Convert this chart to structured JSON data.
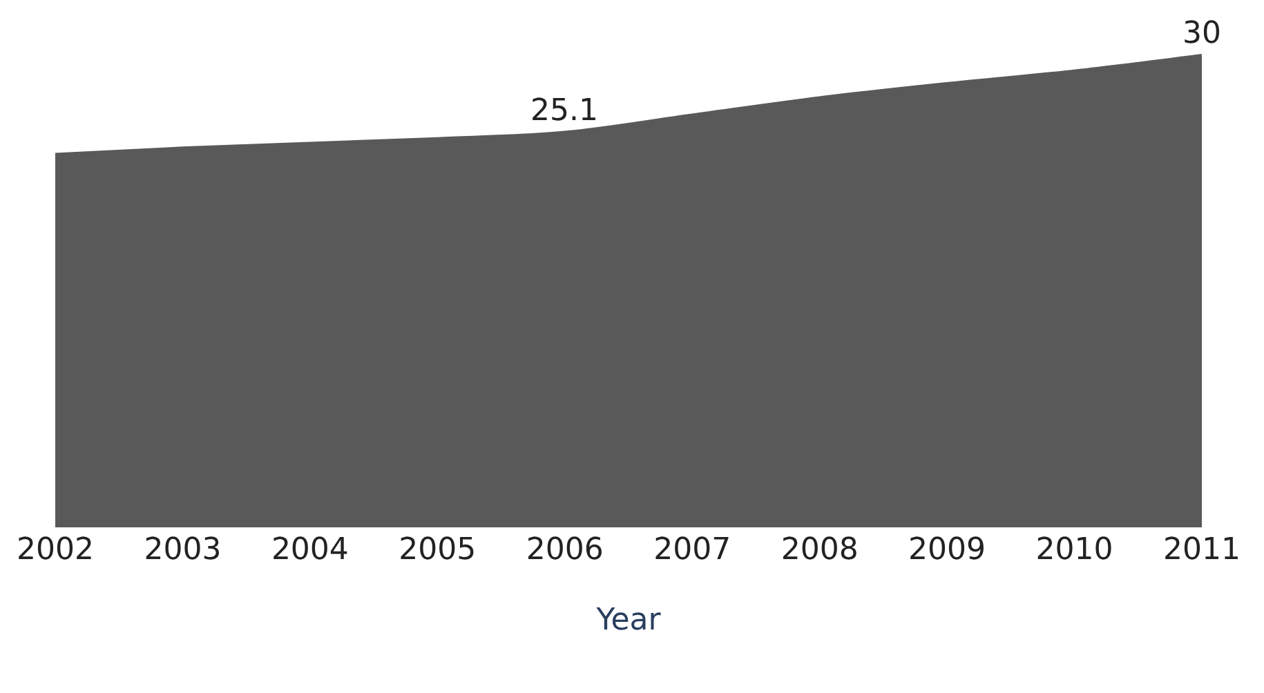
{
  "chart_data": {
    "type": "area",
    "xlabel": "Year",
    "categories": [
      "2002",
      "2003",
      "2004",
      "2005",
      "2006",
      "2007",
      "2008",
      "2009",
      "2010",
      "2011"
    ],
    "series": [
      {
        "color": "#595959",
        "values": [
          23.7,
          24.1,
          24.4,
          24.7,
          25.1,
          26.2,
          27.3,
          28.2,
          29.0,
          30
        ],
        "value_labels": [
          null,
          null,
          null,
          null,
          "25.1",
          null,
          null,
          null,
          null,
          "30"
        ]
      }
    ],
    "tick_labels": "x"
  }
}
